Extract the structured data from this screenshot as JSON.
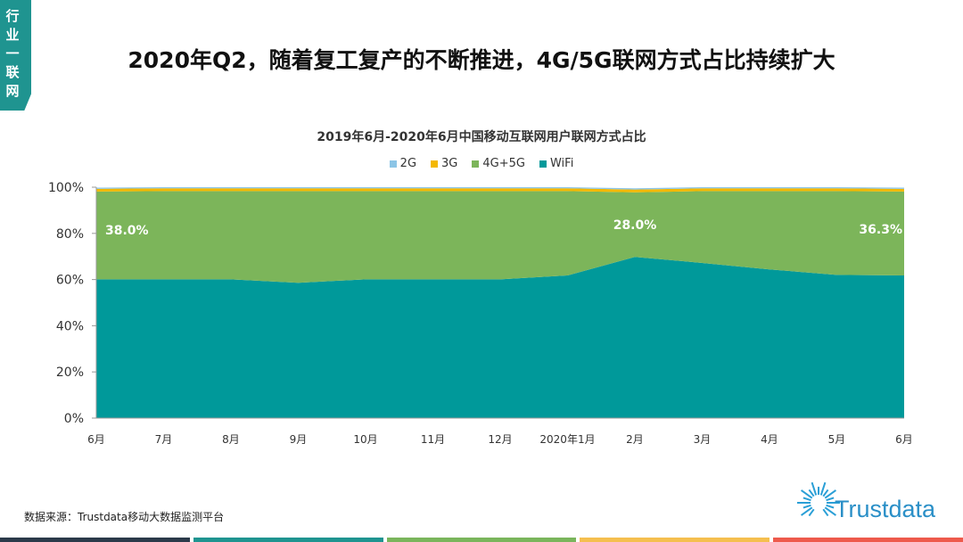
{
  "tab": {
    "label": "行业一联网"
  },
  "title": "2020年Q2，随着复工复产的不断推进，4G/5G联网方式占比持续扩大",
  "source": "数据来源：Trustdata移动大数据监测平台",
  "logo": "Trustdata",
  "footer_colors": [
    "#2b3a4a",
    "#1f9490",
    "#7ab55c",
    "#f5bf4f",
    "#ee5a4c"
  ],
  "chart_data": {
    "type": "area",
    "stacked": true,
    "title": "2019年6月-2020年6月中国移动互联网用户联网方式占比",
    "legend_position": "top",
    "categories": [
      "6月",
      "7月",
      "8月",
      "9月",
      "10月",
      "11月",
      "12月",
      "2020年1月",
      "2月",
      "3月",
      "4月",
      "5月",
      "6月"
    ],
    "ylim": [
      0,
      100
    ],
    "yticks": [
      "0%",
      "20%",
      "40%",
      "60%",
      "80%",
      "100%"
    ],
    "series": [
      {
        "name": "WiFi",
        "color": "#00999a",
        "values": [
          60.1,
          60.1,
          60.1,
          58.6,
          60.1,
          60.1,
          60.1,
          61.8,
          69.8,
          67.2,
          64.4,
          62.0,
          61.8
        ]
      },
      {
        "name": "4G+5G",
        "color": "#7cb55a",
        "values": [
          38.0,
          38.2,
          38.2,
          39.7,
          38.2,
          38.2,
          38.2,
          36.5,
          28.0,
          31.1,
          33.9,
          36.3,
          36.3
        ]
      },
      {
        "name": "3G",
        "color": "#f4b800",
        "values": [
          1.2,
          1.2,
          1.2,
          1.2,
          1.2,
          1.2,
          1.2,
          1.2,
          1.2,
          1.2,
          1.2,
          1.2,
          1.2
        ]
      },
      {
        "name": "2G",
        "color": "#8cc5e6",
        "values": [
          0.5,
          0.5,
          0.5,
          0.5,
          0.5,
          0.5,
          0.5,
          0.5,
          0.5,
          0.5,
          0.5,
          0.5,
          0.5
        ]
      }
    ],
    "data_labels": [
      {
        "series": "4G+5G",
        "category_index": 0,
        "text": "38.0%"
      },
      {
        "series": "4G+5G",
        "category_index": 8,
        "text": "28.0%"
      },
      {
        "series": "4G+5G",
        "category_index": 12,
        "text": "36.3%"
      }
    ]
  }
}
